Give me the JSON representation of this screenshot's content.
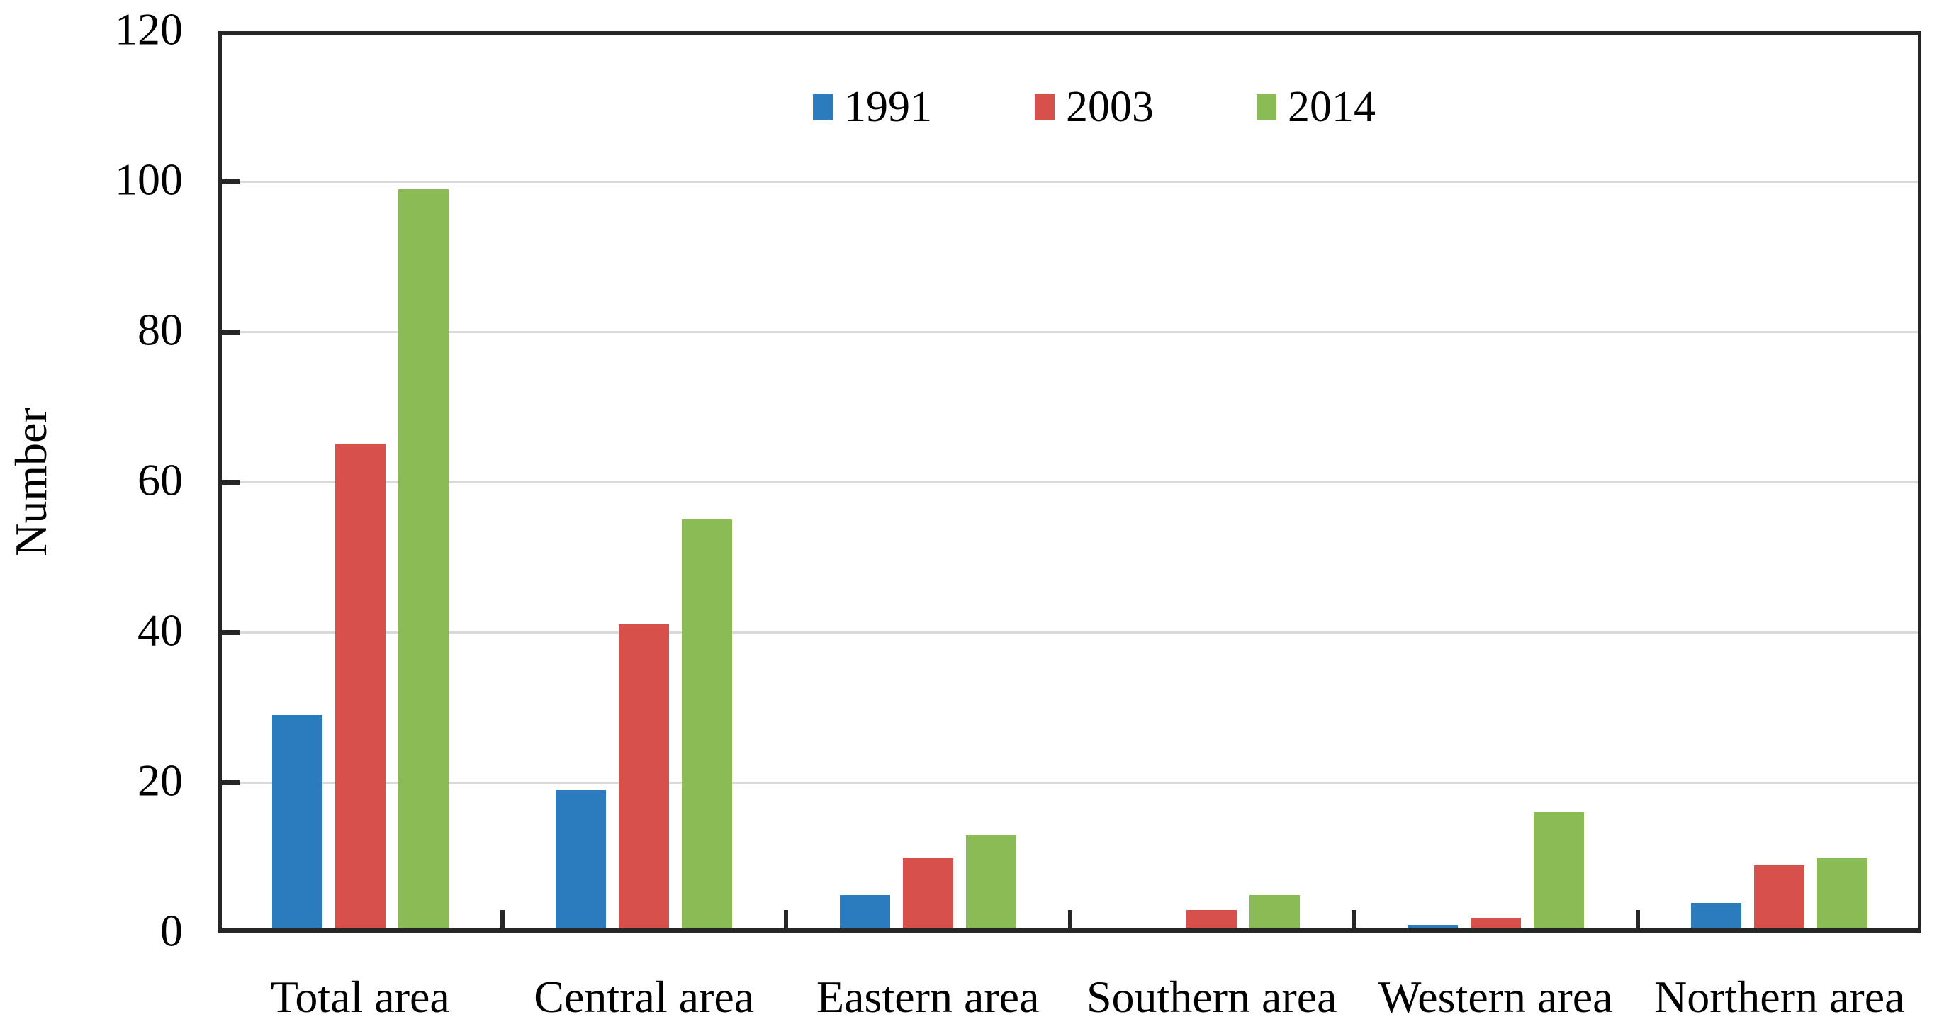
{
  "chart_data": {
    "type": "bar",
    "title": "",
    "ylabel": "Number",
    "xlabel": "",
    "categories": [
      "Total area",
      "Central area",
      "Eastern area",
      "Southern area",
      "Western area",
      "Northern area"
    ],
    "series": [
      {
        "name": "1991",
        "color": "#2A7CBF",
        "values": [
          29,
          19,
          5,
          0,
          1,
          4
        ]
      },
      {
        "name": "2003",
        "color": "#D8504B",
        "values": [
          65,
          41,
          10,
          3,
          2,
          9
        ]
      },
      {
        "name": "2014",
        "color": "#8BBB55",
        "values": [
          99,
          55,
          13,
          5,
          16,
          10
        ]
      }
    ],
    "ylim": [
      0,
      120
    ],
    "yticks": [
      0,
      20,
      40,
      60,
      80,
      100,
      120
    ],
    "grid": "horizontal",
    "legend_position": "top-center",
    "colors": {
      "gridline": "#D9D9D9",
      "axis_frame": "#262626",
      "text": "#000000",
      "background": "#FFFFFF"
    }
  }
}
